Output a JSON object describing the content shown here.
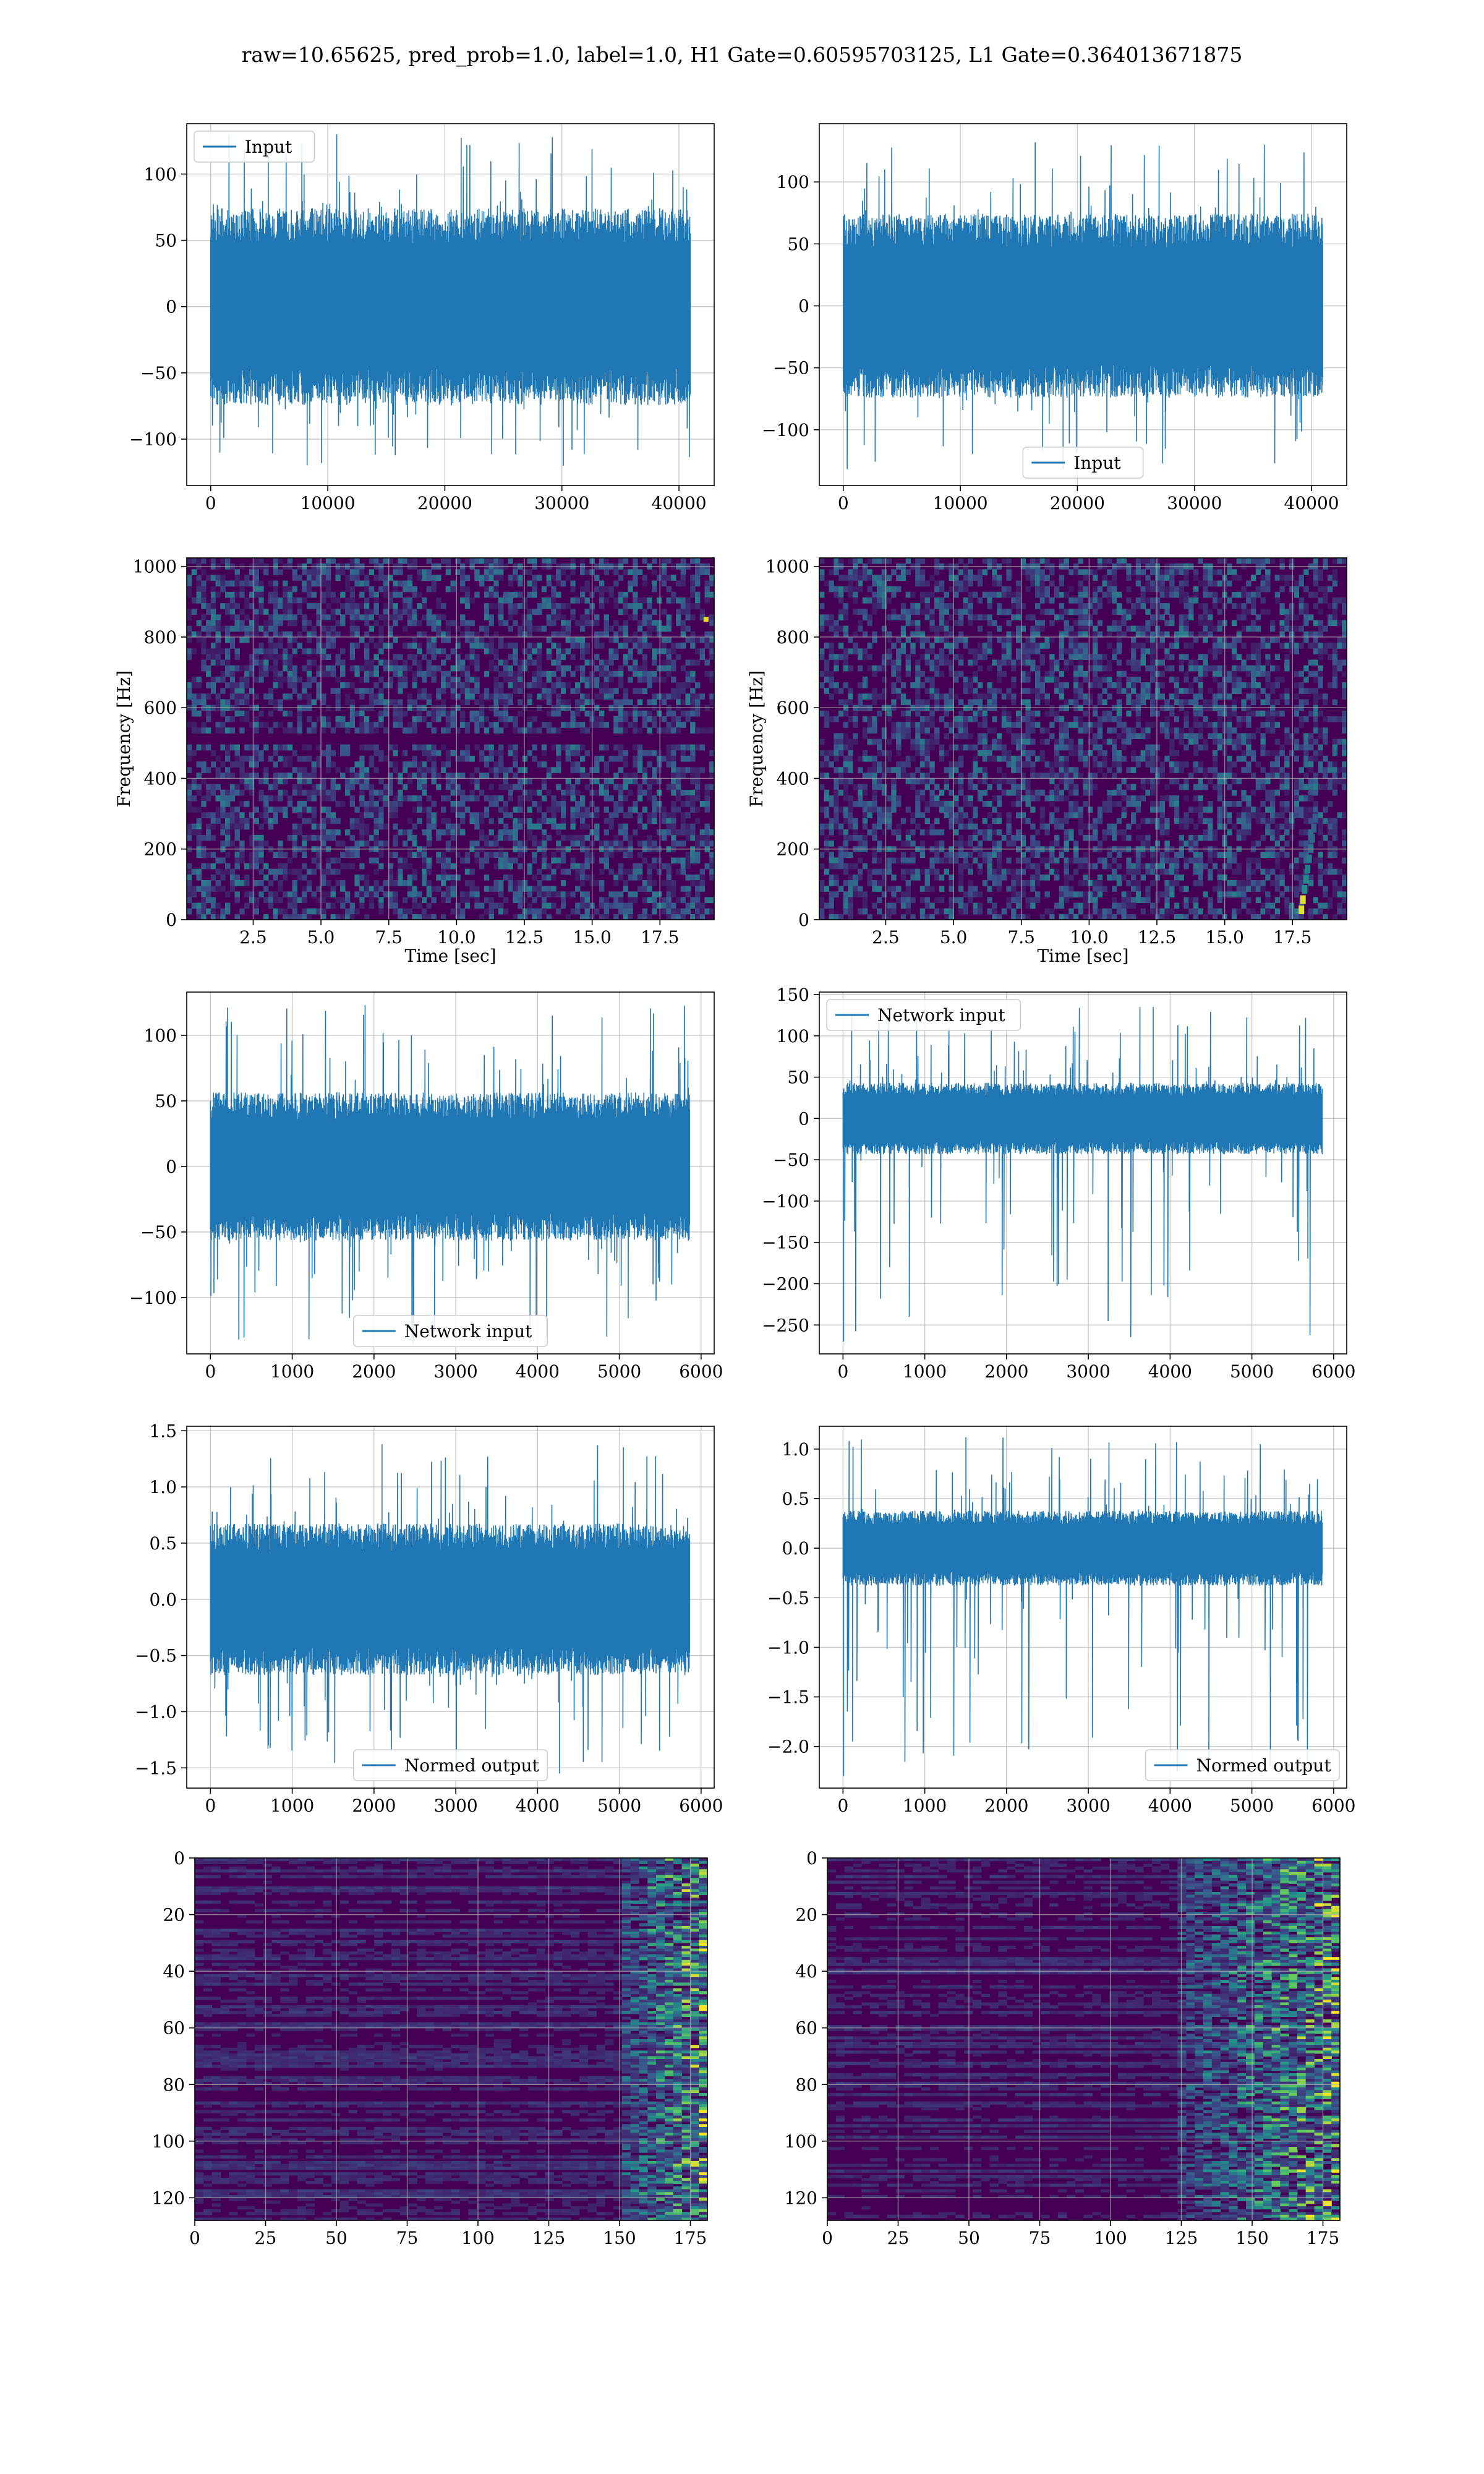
{
  "suptitle": "raw=10.65625, pred_prob=1.0, label=1.0, H1 Gate=0.60595703125, L1 Gate=0.364013671875",
  "colors": {
    "series": "#1f77b4",
    "grid": "#b0b0b0",
    "viridis_dark": "#440154",
    "viridis_mid": "#21918c",
    "viridis_bright": "#fde725"
  },
  "chart_data": [
    {
      "type": "line",
      "panel": "row1-left",
      "x_range": [
        0,
        40960
      ],
      "xlim": [
        -2048,
        43008
      ],
      "ylim": [
        -135,
        138
      ],
      "xticks": [
        0,
        10000,
        20000,
        30000,
        40000
      ],
      "yticks": [
        -100,
        -50,
        0,
        50,
        100
      ],
      "series": [
        {
          "name": "Input",
          "envelope": {
            "core": [
              -55,
              55
            ],
            "peak_max": 130,
            "peak_min": -120
          }
        }
      ],
      "legend": "upper left",
      "grid": true
    },
    {
      "type": "line",
      "panel": "row1-right",
      "x_range": [
        0,
        40960
      ],
      "xlim": [
        -2048,
        43008
      ],
      "ylim": [
        -145,
        147
      ],
      "xticks": [
        0,
        10000,
        20000,
        30000,
        40000
      ],
      "yticks": [
        -100,
        -50,
        0,
        50,
        100
      ],
      "series": [
        {
          "name": "Input",
          "envelope": {
            "core": [
              -55,
              55
            ],
            "peak_max": 132,
            "peak_min": -132
          }
        }
      ],
      "legend": "lower center",
      "grid": true
    },
    {
      "type": "heatmap",
      "panel": "row2-left",
      "colormap": "viridis",
      "xlabel": "Time [sec]",
      "ylabel": "Frequency [Hz]",
      "xlim": [
        0.05,
        19.5
      ],
      "ylim": [
        0,
        1024
      ],
      "xticks": [
        2.5,
        5.0,
        7.5,
        10.0,
        12.5,
        15.0,
        17.5
      ],
      "yticks": [
        0,
        200,
        400,
        600,
        800,
        1000
      ],
      "dark_band_hz": [
        490,
        520
      ],
      "hot_spot": {
        "time": 19.2,
        "freq": 850
      },
      "grid": true
    },
    {
      "type": "heatmap",
      "panel": "row2-right",
      "colormap": "viridis",
      "xlabel": "Time [sec]",
      "ylabel": "Frequency [Hz]",
      "xlim": [
        0.05,
        19.5
      ],
      "ylim": [
        0,
        1024
      ],
      "xticks": [
        2.5,
        5.0,
        7.5,
        10.0,
        12.5,
        15.0,
        17.5
      ],
      "yticks": [
        0,
        200,
        400,
        600,
        800,
        1000
      ],
      "chirp": {
        "time": 18.0,
        "freq_range": [
          40,
          300
        ]
      },
      "grid": true
    },
    {
      "type": "line",
      "panel": "row3-left",
      "x_range": [
        0,
        5860
      ],
      "xlim": [
        -290,
        6160
      ],
      "ylim": [
        -143,
        133
      ],
      "xticks": [
        0,
        1000,
        2000,
        3000,
        4000,
        5000,
        6000
      ],
      "yticks": [
        -100,
        -50,
        0,
        50,
        100
      ],
      "series": [
        {
          "name": "Network input",
          "envelope": {
            "core": [
              -42,
              42
            ],
            "peak_max": 123,
            "peak_min": -135
          }
        }
      ],
      "legend": "lower center",
      "grid": true
    },
    {
      "type": "line",
      "panel": "row3-right",
      "x_range": [
        0,
        5860
      ],
      "xlim": [
        -290,
        6160
      ],
      "ylim": [
        -285,
        153
      ],
      "xticks": [
        0,
        1000,
        2000,
        3000,
        4000,
        5000,
        6000
      ],
      "yticks": [
        -250,
        -200,
        -150,
        -100,
        -50,
        0,
        50,
        100,
        150
      ],
      "series": [
        {
          "name": "Network input",
          "envelope": {
            "core": [
              -32,
              32
            ],
            "peak_max": 135,
            "peak_min": -270
          }
        }
      ],
      "legend": "upper left",
      "grid": true
    },
    {
      "type": "line",
      "panel": "row4-left",
      "x_range": [
        0,
        5860
      ],
      "xlim": [
        -290,
        6160
      ],
      "ylim": [
        -1.68,
        1.54
      ],
      "xticks": [
        0,
        1000,
        2000,
        3000,
        4000,
        5000,
        6000
      ],
      "yticks": [
        -1.5,
        -1.0,
        -0.5,
        0.0,
        0.5,
        1.0,
        1.5
      ],
      "series": [
        {
          "name": "Normed output",
          "envelope": {
            "core": [
              -0.5,
              0.5
            ],
            "peak_max": 1.38,
            "peak_min": -1.55
          }
        }
      ],
      "legend": "lower center",
      "grid": true
    },
    {
      "type": "line",
      "panel": "row4-right",
      "x_range": [
        0,
        5860
      ],
      "xlim": [
        -290,
        6160
      ],
      "ylim": [
        -2.42,
        1.23
      ],
      "xticks": [
        0,
        1000,
        2000,
        3000,
        4000,
        5000,
        6000
      ],
      "yticks": [
        -2.0,
        -1.5,
        -1.0,
        -0.5,
        0.0,
        0.5,
        1.0
      ],
      "series": [
        {
          "name": "Normed output",
          "envelope": {
            "core": [
              -0.28,
              0.28
            ],
            "peak_max": 1.12,
            "peak_min": -2.3
          }
        }
      ],
      "legend": "lower right",
      "grid": true
    },
    {
      "type": "heatmap",
      "panel": "row5-left",
      "colormap": "viridis",
      "xlim": [
        0,
        181
      ],
      "ylim": [
        128,
        0
      ],
      "xticks": [
        0,
        25,
        50,
        75,
        100,
        125,
        150,
        175
      ],
      "yticks": [
        0,
        20,
        40,
        60,
        80,
        100,
        120
      ],
      "bright_region_x": [
        150,
        181
      ],
      "grid": true
    },
    {
      "type": "heatmap",
      "panel": "row5-right",
      "colormap": "viridis",
      "xlim": [
        0,
        181
      ],
      "ylim": [
        128,
        0
      ],
      "xticks": [
        0,
        25,
        50,
        75,
        100,
        125,
        150,
        175
      ],
      "yticks": [
        0,
        20,
        40,
        60,
        80,
        100,
        120
      ],
      "bright_region_x": [
        125,
        181
      ],
      "grid": true
    }
  ]
}
